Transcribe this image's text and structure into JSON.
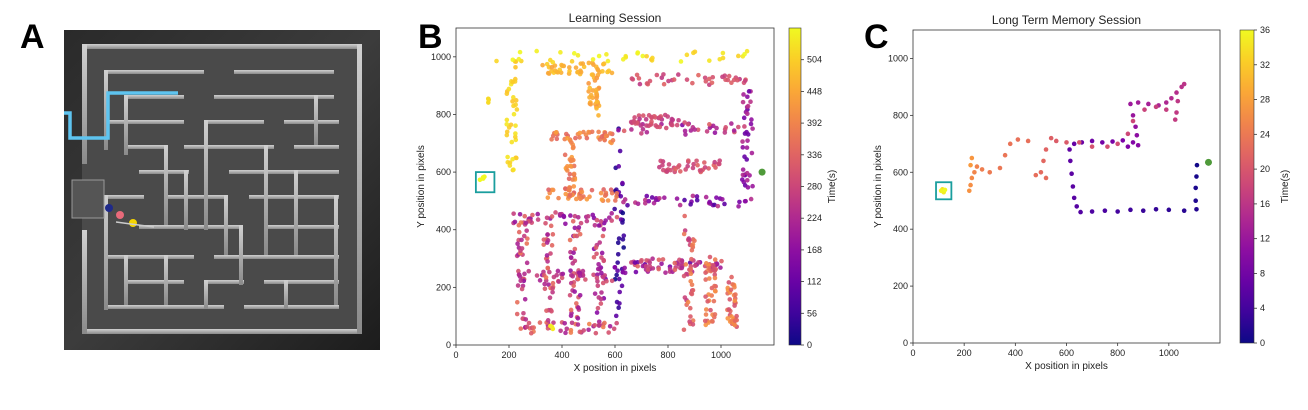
{
  "figure": {
    "panel_labels": [
      "A",
      "B",
      "C"
    ],
    "colors": {
      "maze_path": "#5ec4f0",
      "marker_navy": "#1f2a8a",
      "marker_pink": "#e86a7a",
      "marker_yellow": "#f5d400",
      "goal_box": "#1a9e9e",
      "start_marker": "#4f9a3a"
    }
  },
  "chart_data": [
    {
      "panel": "B",
      "type": "scatter",
      "title": "Learning Session",
      "xlabel": "X position in pixels",
      "ylabel": "Y position in pixels",
      "xlim": [
        0,
        1200
      ],
      "ylim": [
        0,
        1100
      ],
      "xticks": [
        0,
        200,
        400,
        600,
        800,
        1000
      ],
      "yticks": [
        0,
        200,
        400,
        600,
        800,
        1000
      ],
      "colorbar": {
        "label": "Time(s)",
        "range": [
          0,
          560
        ],
        "ticks": [
          0,
          56,
          112,
          168,
          224,
          280,
          336,
          392,
          448,
          504
        ],
        "colormap": "plasma"
      },
      "start_point": [
        1155,
        600
      ],
      "goal_box": {
        "x": [
          75,
          145
        ],
        "y": [
          530,
          600
        ]
      },
      "trajectory_segments": [
        {
          "from": [
            615,
            40
          ],
          "to": [
            615,
            760
          ],
          "time": [
            0,
            120
          ]
        },
        {
          "from": [
            615,
            500
          ],
          "to": [
            1100,
            500
          ],
          "time": [
            60,
            250
          ]
        },
        {
          "from": [
            1100,
            500
          ],
          "to": [
            1100,
            880
          ],
          "time": [
            100,
            250
          ]
        },
        {
          "from": [
            615,
            750
          ],
          "to": [
            1100,
            750
          ],
          "time": [
            150,
            330
          ]
        },
        {
          "from": [
            600,
            270
          ],
          "to": [
            1000,
            270
          ],
          "time": [
            100,
            300
          ]
        },
        {
          "from": [
            230,
            440
          ],
          "to": [
            600,
            440
          ],
          "time": [
            150,
            330
          ]
        },
        {
          "from": [
            230,
            240
          ],
          "to": [
            600,
            240
          ],
          "time": [
            150,
            330
          ]
        },
        {
          "from": [
            230,
            60
          ],
          "to": [
            600,
            60
          ],
          "time": [
            200,
            400
          ]
        },
        {
          "from": [
            250,
            60
          ],
          "to": [
            250,
            440
          ],
          "time": [
            200,
            380
          ]
        },
        {
          "from": [
            350,
            60
          ],
          "to": [
            350,
            440
          ],
          "time": [
            200,
            380
          ]
        },
        {
          "from": [
            450,
            60
          ],
          "to": [
            450,
            440
          ],
          "time": [
            180,
            360
          ]
        },
        {
          "from": [
            540,
            60
          ],
          "to": [
            540,
            440
          ],
          "time": [
            150,
            330
          ]
        },
        {
          "from": [
            680,
            280
          ],
          "to": [
            1000,
            280
          ],
          "time": [
            180,
            360
          ]
        },
        {
          "from": [
            880,
            40
          ],
          "to": [
            880,
            450
          ],
          "time": [
            250,
            400
          ]
        },
        {
          "from": [
            960,
            60
          ],
          "to": [
            960,
            300
          ],
          "time": [
            300,
            420
          ]
        },
        {
          "from": [
            1040,
            60
          ],
          "to": [
            1040,
            220
          ],
          "time": [
            300,
            420
          ]
        },
        {
          "from": [
            350,
            720
          ],
          "to": [
            600,
            720
          ],
          "time": [
            330,
            440
          ]
        },
        {
          "from": [
            350,
            520
          ],
          "to": [
            600,
            520
          ],
          "time": [
            330,
            440
          ]
        },
        {
          "from": [
            430,
            520
          ],
          "to": [
            430,
            720
          ],
          "time": [
            340,
            440
          ]
        },
        {
          "from": [
            520,
            800
          ],
          "to": [
            520,
            960
          ],
          "time": [
            420,
            480
          ]
        },
        {
          "from": [
            330,
            960
          ],
          "to": [
            600,
            960
          ],
          "time": [
            440,
            500
          ]
        },
        {
          "from": [
            210,
            600
          ],
          "to": [
            210,
            1000
          ],
          "time": [
            480,
            540
          ]
        },
        {
          "from": [
            160,
            1000
          ],
          "to": [
            1120,
            1000
          ],
          "time": [
            500,
            560
          ]
        },
        {
          "from": [
            660,
            920
          ],
          "to": [
            1100,
            920
          ],
          "time": [
            250,
            340
          ]
        },
        {
          "from": [
            650,
            780
          ],
          "to": [
            850,
            780
          ],
          "time": [
            240,
            320
          ]
        },
        {
          "from": [
            780,
            620
          ],
          "to": [
            1000,
            620
          ],
          "time": [
            260,
            340
          ]
        }
      ],
      "clusters": [
        {
          "center": [
            100,
            575
          ],
          "n": 6,
          "time": 560
        },
        {
          "center": [
            120,
            850
          ],
          "n": 3,
          "time": 520
        },
        {
          "center": [
            360,
            60
          ],
          "n": 3,
          "time": 540
        }
      ]
    },
    {
      "panel": "C",
      "type": "scatter",
      "title": "Long Term Memory Session",
      "xlabel": "X position in pixels",
      "ylabel": "Y position in pixels",
      "xlim": [
        0,
        1200
      ],
      "ylim": [
        0,
        1100
      ],
      "xticks": [
        0,
        200,
        400,
        600,
        800,
        1000
      ],
      "yticks": [
        0,
        200,
        400,
        600,
        800,
        1000
      ],
      "colorbar": {
        "label": "Time(s)",
        "range": [
          0,
          36
        ],
        "ticks": [
          0,
          4,
          8,
          12,
          16,
          20,
          24,
          28,
          32,
          36
        ],
        "colormap": "plasma"
      },
      "start_point": [
        1155,
        635
      ],
      "goal_box": {
        "x": [
          90,
          150
        ],
        "y": [
          505,
          565
        ]
      },
      "points": [
        {
          "x": 1110,
          "y": 625,
          "t": 0.4
        },
        {
          "x": 1108,
          "y": 585,
          "t": 0.7
        },
        {
          "x": 1105,
          "y": 545,
          "t": 1.0
        },
        {
          "x": 1105,
          "y": 500,
          "t": 1.3
        },
        {
          "x": 1108,
          "y": 470,
          "t": 1.6
        },
        {
          "x": 1060,
          "y": 465,
          "t": 2.0
        },
        {
          "x": 1000,
          "y": 468,
          "t": 2.4
        },
        {
          "x": 950,
          "y": 470,
          "t": 2.8
        },
        {
          "x": 900,
          "y": 465,
          "t": 3.2
        },
        {
          "x": 850,
          "y": 468,
          "t": 3.6
        },
        {
          "x": 800,
          "y": 462,
          "t": 4.0
        },
        {
          "x": 750,
          "y": 465,
          "t": 4.4
        },
        {
          "x": 700,
          "y": 462,
          "t": 4.8
        },
        {
          "x": 655,
          "y": 460,
          "t": 5.2
        },
        {
          "x": 640,
          "y": 480,
          "t": 5.4
        },
        {
          "x": 630,
          "y": 510,
          "t": 5.6
        },
        {
          "x": 625,
          "y": 550,
          "t": 5.8
        },
        {
          "x": 620,
          "y": 595,
          "t": 6.0
        },
        {
          "x": 615,
          "y": 640,
          "t": 6.2
        },
        {
          "x": 612,
          "y": 680,
          "t": 6.4
        },
        {
          "x": 630,
          "y": 700,
          "t": 6.8
        },
        {
          "x": 660,
          "y": 705,
          "t": 7.2
        },
        {
          "x": 700,
          "y": 710,
          "t": 7.6
        },
        {
          "x": 740,
          "y": 705,
          "t": 8.0
        },
        {
          "x": 780,
          "y": 708,
          "t": 8.4
        },
        {
          "x": 820,
          "y": 712,
          "t": 8.8
        },
        {
          "x": 840,
          "y": 690,
          "t": 9.2
        },
        {
          "x": 860,
          "y": 705,
          "t": 9.6
        },
        {
          "x": 880,
          "y": 695,
          "t": 10.0
        },
        {
          "x": 875,
          "y": 730,
          "t": 10.6
        },
        {
          "x": 870,
          "y": 760,
          "t": 11.2
        },
        {
          "x": 860,
          "y": 800,
          "t": 11.8
        },
        {
          "x": 850,
          "y": 840,
          "t": 12.3
        },
        {
          "x": 880,
          "y": 845,
          "t": 12.8
        },
        {
          "x": 920,
          "y": 840,
          "t": 13.3
        },
        {
          "x": 960,
          "y": 835,
          "t": 13.8
        },
        {
          "x": 990,
          "y": 845,
          "t": 14.2
        },
        {
          "x": 1010,
          "y": 860,
          "t": 14.6
        },
        {
          "x": 1030,
          "y": 880,
          "t": 15.0
        },
        {
          "x": 1050,
          "y": 900,
          "t": 15.4
        },
        {
          "x": 1060,
          "y": 910,
          "t": 15.8
        },
        {
          "x": 1035,
          "y": 850,
          "t": 16.2
        },
        {
          "x": 1030,
          "y": 810,
          "t": 16.5
        },
        {
          "x": 1025,
          "y": 785,
          "t": 16.8
        },
        {
          "x": 990,
          "y": 820,
          "t": 17.1
        },
        {
          "x": 950,
          "y": 830,
          "t": 17.4
        },
        {
          "x": 905,
          "y": 820,
          "t": 17.7
        },
        {
          "x": 860,
          "y": 780,
          "t": 18.0
        },
        {
          "x": 840,
          "y": 735,
          "t": 18.4
        },
        {
          "x": 800,
          "y": 700,
          "t": 18.8
        },
        {
          "x": 760,
          "y": 690,
          "t": 19.2
        },
        {
          "x": 700,
          "y": 690,
          "t": 19.6
        },
        {
          "x": 650,
          "y": 705,
          "t": 20.0
        },
        {
          "x": 600,
          "y": 705,
          "t": 20.4
        },
        {
          "x": 560,
          "y": 710,
          "t": 20.8
        },
        {
          "x": 540,
          "y": 720,
          "t": 21.2
        },
        {
          "x": 520,
          "y": 680,
          "t": 21.6
        },
        {
          "x": 510,
          "y": 640,
          "t": 22.0
        },
        {
          "x": 500,
          "y": 600,
          "t": 22.4
        },
        {
          "x": 520,
          "y": 580,
          "t": 22.6
        },
        {
          "x": 480,
          "y": 590,
          "t": 22.8
        },
        {
          "x": 450,
          "y": 710,
          "t": 23.0
        },
        {
          "x": 410,
          "y": 715,
          "t": 23.2
        },
        {
          "x": 380,
          "y": 700,
          "t": 23.4
        },
        {
          "x": 360,
          "y": 660,
          "t": 23.6
        },
        {
          "x": 340,
          "y": 615,
          "t": 23.8
        },
        {
          "x": 300,
          "y": 600,
          "t": 24.2
        },
        {
          "x": 270,
          "y": 610,
          "t": 24.6
        },
        {
          "x": 250,
          "y": 620,
          "t": 25.0
        },
        {
          "x": 240,
          "y": 600,
          "t": 25.4
        },
        {
          "x": 230,
          "y": 580,
          "t": 25.8
        },
        {
          "x": 225,
          "y": 555,
          "t": 26.3
        },
        {
          "x": 220,
          "y": 535,
          "t": 26.8
        },
        {
          "x": 230,
          "y": 650,
          "t": 27.2
        },
        {
          "x": 225,
          "y": 625,
          "t": 27.6
        },
        {
          "x": 115,
          "y": 540,
          "t": 34
        },
        {
          "x": 120,
          "y": 530,
          "t": 35
        },
        {
          "x": 110,
          "y": 535,
          "t": 35.5
        },
        {
          "x": 125,
          "y": 538,
          "t": 36
        }
      ]
    }
  ]
}
